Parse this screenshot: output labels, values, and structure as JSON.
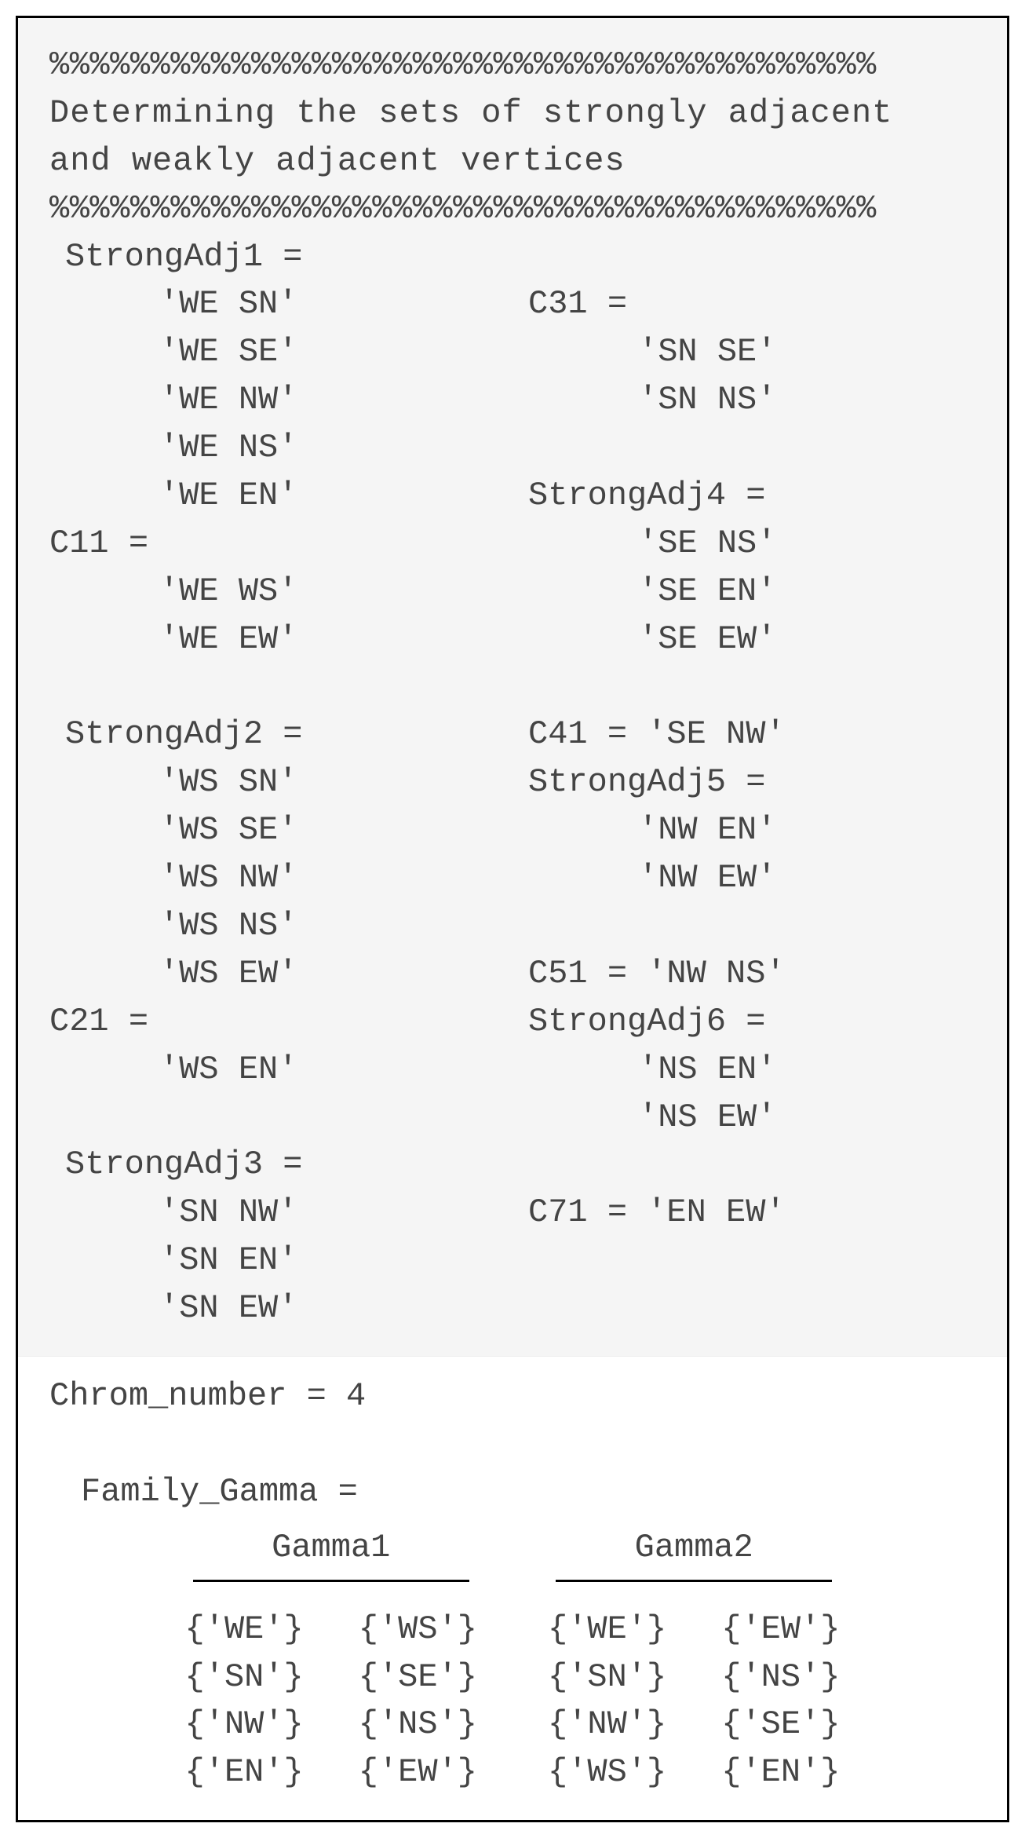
{
  "sep_line": "%%%%%%%%%%%%%%%%%%%%%%%%%%%%%%%%%%%%%%%%%",
  "title_line1": "Determining  the sets of strongly adjacent",
  "title_line2": "and weakly adjacent vertices",
  "left": {
    "sa1_header": "StrongAdj1 =",
    "sa1": [
      "'WE SN'",
      "'WE SE'",
      "'WE NW'",
      "'WE NS'",
      "'WE EN'"
    ],
    "c11_header": "C11 =",
    "c11": [
      "'WE WS'",
      "'WE EW'"
    ],
    "sa2_header": "StrongAdj2 =",
    "sa2": [
      "'WS SN'",
      "'WS SE'",
      "'WS NW'",
      "'WS NS'",
      "'WS EW'"
    ],
    "c21_header": "C21 =",
    "c21": [
      "'WS EN'"
    ],
    "sa3_header": "StrongAdj3 =",
    "sa3": [
      "'SN NW'",
      "'SN EN'",
      "'SN EW'"
    ]
  },
  "right": {
    "c31_header": "C31 =",
    "c31": [
      "'SN SE'",
      "'SN NS'"
    ],
    "sa4_header": "StrongAdj4 =",
    "sa4": [
      "'SE NS'",
      "'SE EN'",
      "'SE EW'"
    ],
    "c41": "C41 = 'SE NW'",
    "sa5_header": "StrongAdj5 =",
    "sa5": [
      "'NW EN'",
      "'NW EW'"
    ],
    "c51": "C51 = 'NW NS'",
    "sa6_header": "StrongAdj6 =",
    "sa6": [
      "'NS EN'",
      "'NS EW'"
    ],
    "c71": "C71 = 'EN EW'"
  },
  "bottom": {
    "chrom": "Chrom_number = 4",
    "family_header": "Family_Gamma =",
    "gamma1_label": "Gamma1",
    "gamma2_label": "Gamma2",
    "gamma1_a": [
      "{'WE'}",
      "{'SN'}",
      "{'NW'}",
      "{'EN'}"
    ],
    "gamma1_b": [
      "{'WS'}",
      "{'SE'}",
      "{'NS'}",
      "{'EW'}"
    ],
    "gamma2_a": [
      "{'WE'}",
      "{'SN'}",
      "{'NW'}",
      "{'WS'}"
    ],
    "gamma2_b": [
      "{'EW'}",
      "{'NS'}",
      "{'SE'}",
      "{'EN'}"
    ]
  }
}
